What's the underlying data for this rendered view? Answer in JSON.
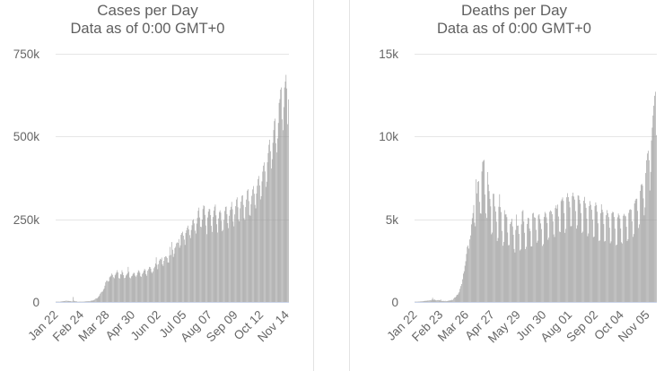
{
  "colors": {
    "bar": "#9a9a9a",
    "grid": "#e6e6e6",
    "axis_line": "#ccd6eb",
    "title_text": "#5f5f5f",
    "axis_text": "#666666",
    "panel_border": "#e3e3e3",
    "background": "#ffffff"
  },
  "chart_data": [
    {
      "type": "bar",
      "title": "Cases per Day",
      "subtitle": "Data as of 0:00 GMT+0",
      "ylim": [
        0,
        750000
      ],
      "y_tick_values": [
        0,
        250000,
        500000,
        750000
      ],
      "y_tick_labels": [
        "0",
        "250k",
        "500k",
        "750k"
      ],
      "x_unit": "day",
      "x_tick_interval_days": 33,
      "x_tick_labels": [
        "Jan 22",
        "Feb 24",
        "Mar 28",
        "Apr 30",
        "Jun 02",
        "Jul 05",
        "Aug 07",
        "Sep 09",
        "Oct 12",
        "Nov 14"
      ],
      "grid": true,
      "legend": "none",
      "values": [
        500,
        600,
        900,
        700,
        800,
        800,
        1500,
        1800,
        2000,
        2100,
        2600,
        2800,
        3200,
        3900,
        3700,
        3200,
        3400,
        2700,
        3000,
        2600,
        2000,
        2100,
        15100,
        4000,
        2600,
        2000,
        1900,
        1800,
        500,
        600,
        900,
        1000,
        600,
        900,
        1000,
        1100,
        1400,
        1500,
        1800,
        1900,
        2000,
        2100,
        2400,
        2800,
        3000,
        3900,
        4000,
        4300,
        4900,
        6100,
        7500,
        10200,
        11000,
        10800,
        13900,
        16600,
        19700,
        24900,
        28700,
        30900,
        31500,
        37100,
        41000,
        49200,
        59300,
        63900,
        64500,
        61700,
        63200,
        74700,
        77200,
        79800,
        86000,
        82100,
        74800,
        71800,
        80800,
        85100,
        89600,
        96000,
        89300,
        72300,
        71100,
        84400,
        82900,
        95900,
        89600,
        81200,
        72300,
        73500,
        80100,
        83100,
        86900,
        106000,
        91200,
        74200,
        71900,
        77500,
        79400,
        84600,
        88300,
        87700,
        79900,
        76600,
        80700,
        88800,
        95900,
        93600,
        88400,
        77600,
        76300,
        84900,
        88300,
        94800,
        100300,
        96100,
        84300,
        79300,
        94500,
        99100,
        106100,
        105500,
        100700,
        90800,
        87200,
        92500,
        102100,
        106500,
        116300,
        134900,
        112500,
        99200,
        114200,
        125300,
        130200,
        128300,
        134100,
        113900,
        108800,
        124500,
        135500,
        138300,
        136900,
        132700,
        119700,
        118900,
        140500,
        166500,
        142100,
        181200,
        157900,
        136300,
        145600,
        162500,
        167000,
        177300,
        180000,
        178800,
        190100,
        164000,
        171000,
        203200,
        208400,
        212300,
        200400,
        188400,
        172500,
        208500,
        216500,
        224500,
        230800,
        219400,
        202100,
        193200,
        217400,
        232000,
        246300,
        250100,
        237600,
        215500,
        206900,
        236800,
        254200,
        275700,
        285100,
        255400,
        227500,
        226400,
        249000,
        280900,
        292200,
        289600,
        263100,
        231300,
        204900,
        255300,
        272900,
        281400,
        280200,
        262500,
        230300,
        211700,
        256900,
        276100,
        288100,
        294400,
        262000,
        234900,
        210000,
        252600,
        271800,
        276900,
        270100,
        245500,
        213800,
        217600,
        248000,
        275000,
        287200,
        288500,
        265000,
        238200,
        223200,
        260500,
        278300,
        287600,
        302500,
        280100,
        243200,
        228500,
        264700,
        289600,
        309600,
        316200,
        286200,
        249900,
        243700,
        283000,
        303500,
        320900,
        322500,
        293100,
        253500,
        248000,
        286800,
        309600,
        336600,
        340600,
        304900,
        263100,
        260500,
        295300,
        320800,
        340100,
        350300,
        327000,
        293400,
        283000,
        327700,
        351400,
        371500,
        380800,
        352200,
        310000,
        319600,
        364400,
        394000,
        412000,
        421800,
        394600,
        347700,
        363300,
        422100,
        450000,
        475100,
        490300,
        455500,
        403500,
        431500,
        480900,
        519500,
        546600,
        553900,
        479700,
        452000,
        494100,
        541000,
        601600,
        613000,
        641800,
        648200,
        551900,
        519000,
        588800,
        648000,
        666000,
        686400,
        645200,
        537300,
        612000
      ]
    },
    {
      "type": "bar",
      "title": "Deaths per Day",
      "subtitle": "Data as of 0:00 GMT+0",
      "ylim": [
        0,
        15000
      ],
      "y_tick_values": [
        0,
        5000,
        10000,
        15000
      ],
      "y_tick_labels": [
        "0",
        "5k",
        "10k",
        "15k"
      ],
      "x_unit": "day",
      "x_tick_interval_days": 32,
      "x_tick_labels": [
        "Jan 22",
        "Feb 23",
        "Mar 26",
        "Apr 27",
        "May 29",
        "Jun 30",
        "Aug 01",
        "Sep 02",
        "Oct 04",
        "Nov 05"
      ],
      "grid": true,
      "legend": "none",
      "values": [
        9,
        9,
        16,
        15,
        24,
        26,
        26,
        38,
        43,
        46,
        45,
        58,
        64,
        66,
        72,
        73,
        86,
        89,
        97,
        108,
        97,
        146,
        254,
        130,
        144,
        142,
        105,
        98,
        115,
        118,
        109,
        97,
        150,
        71,
        52,
        67,
        63,
        58,
        67,
        54,
        57,
        72,
        80,
        86,
        102,
        98,
        131,
        124,
        203,
        271,
        278,
        343,
        436,
        427,
        516,
        607,
        795,
        963,
        1087,
        1372,
        1715,
        1856,
        2191,
        2464,
        2906,
        3331,
        3418,
        3229,
        3784,
        4023,
        4690,
        5063,
        5375,
        5859,
        4793,
        4576,
        7412,
        6563,
        7263,
        7305,
        6050,
        5361,
        5335,
        7887,
        8466,
        8539,
        8586,
        6494,
        5354,
        5081,
        7850,
        7099,
        6702,
        6232,
        5777,
        4094,
        4196,
        6539,
        6537,
        5777,
        5466,
        4856,
        3686,
        3869,
        5755,
        6511,
        5734,
        5435,
        4296,
        3403,
        3629,
        5551,
        5286,
        5302,
        5129,
        4199,
        3428,
        3445,
        4711,
        4838,
        5028,
        4569,
        4064,
        3203,
        2994,
        4357,
        5284,
        4609,
        4621,
        4119,
        3117,
        3182,
        4693,
        5478,
        5556,
        4862,
        4182,
        3196,
        3338,
        4716,
        5092,
        5063,
        4442,
        4283,
        3359,
        3363,
        5345,
        5387,
        5121,
        5093,
        4363,
        3584,
        3703,
        5234,
        5310,
        5010,
        4749,
        4403,
        3391,
        3495,
        5140,
        5445,
        5348,
        5116,
        4767,
        3762,
        3889,
        5448,
        5535,
        5470,
        5305,
        4871,
        4084,
        3930,
        5677,
        5841,
        5643,
        5884,
        5167,
        4252,
        4226,
        6098,
        6203,
        6318,
        6108,
        5369,
        4176,
        4419,
        6329,
        6575,
        6337,
        6071,
        5719,
        4572,
        4587,
        6404,
        6610,
        6375,
        6188,
        5492,
        4437,
        4634,
        6446,
        6417,
        6172,
        5940,
        5371,
        4181,
        4257,
        6122,
        6351,
        5963,
        5693,
        5037,
        3976,
        4143,
        5795,
        6098,
        5870,
        5573,
        4981,
        3921,
        3950,
        5790,
        6020,
        5857,
        5454,
        4757,
        3698,
        3722,
        5369,
        5908,
        5580,
        5428,
        4709,
        3657,
        3688,
        5248,
        5555,
        5365,
        5131,
        4489,
        3552,
        3663,
        5359,
        5450,
        5425,
        5138,
        4433,
        3432,
        3465,
        5118,
        5346,
        5236,
        5039,
        4446,
        3608,
        3540,
        5216,
        5326,
        5222,
        5178,
        4546,
        3681,
        3790,
        5384,
        5567,
        5606,
        5570,
        4877,
        3935,
        4105,
        5956,
        6136,
        6232,
        6243,
        5504,
        4473,
        4690,
        6718,
        7078,
        7140,
        7036,
        6260,
        5238,
        5716,
        7794,
        8563,
        8975,
        9140,
        8571,
        6739,
        7860,
        9762,
        10536,
        11271,
        11863,
        12463,
        12704,
        10083
      ]
    }
  ]
}
